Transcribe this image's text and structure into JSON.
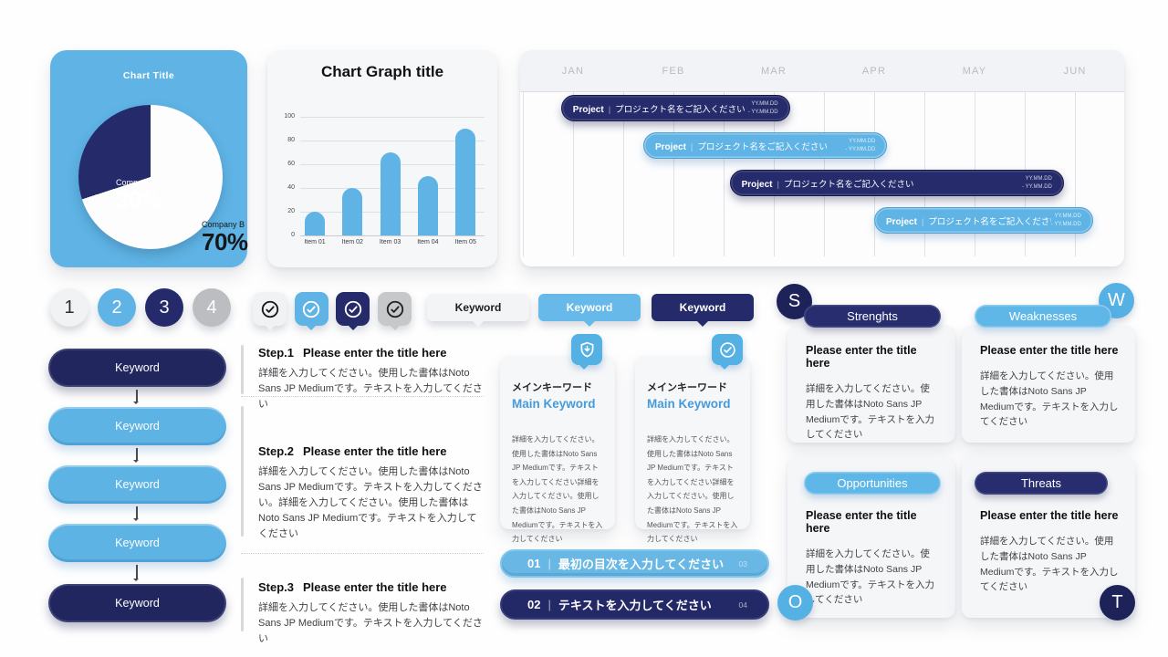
{
  "colors": {
    "light_blue": "#5fb4e5",
    "navy": "#252a6b",
    "gray": "#bcbdc0",
    "card_bg": "#f6f7f9",
    "white": "#ffffff"
  },
  "chart_data": [
    {
      "type": "pie",
      "title": "Chart Title",
      "labels": [
        "Company A",
        "Company B"
      ],
      "values": [
        30,
        70
      ],
      "colors": [
        "#252a6b",
        "#ffffff"
      ],
      "data_labels": [
        "30%",
        "70%"
      ]
    },
    {
      "type": "bar",
      "title": "Chart Graph title",
      "categories": [
        "Item 01",
        "Item 02",
        "Item 03",
        "Item 04",
        "Item 05"
      ],
      "values": [
        20,
        40,
        70,
        50,
        90
      ],
      "ylim": [
        0,
        100
      ],
      "yticks": [
        0,
        20,
        40,
        60,
        80,
        100
      ],
      "bar_color": "#5fb4e5",
      "grid": true,
      "xlabel": "",
      "ylabel": ""
    },
    {
      "type": "gantt",
      "months": [
        "JAN",
        "FEB",
        "MAR",
        "APR",
        "MAY",
        "JUN"
      ],
      "bars": [
        {
          "label": "Project",
          "name": "プロジェクト名をご記入ください",
          "date_line1": "YY.MM.DD",
          "date_line2": "- YY.MM.DD",
          "style": "navy",
          "start_month": 0.38,
          "end_month": 2.66,
          "row": 0
        },
        {
          "label": "Project",
          "name": "プロジェクト名をご記入ください",
          "date_line1": "YY.MM.DD",
          "date_line2": "- YY.MM.DD",
          "style": "blue",
          "start_month": 1.2,
          "end_month": 3.63,
          "row": 1
        },
        {
          "label": "Project",
          "name": "プロジェクト名をご記入ください",
          "date_line1": "YY.MM.DD",
          "date_line2": "- YY.MM.DD",
          "style": "navy",
          "start_month": 2.06,
          "end_month": 5.39,
          "row": 2
        },
        {
          "label": "Project",
          "name": "プロジェクト名をご記入ください",
          "date_line1": "YY.MM.DD",
          "date_line2": "- YY.MM.DD",
          "style": "blue",
          "start_month": 3.5,
          "end_month": 5.68,
          "row": 3
        }
      ]
    }
  ],
  "pie": {
    "title": "Chart Title",
    "slices": [
      {
        "label": "Company A",
        "pct": "30%"
      },
      {
        "label": "Company B",
        "pct": "70%"
      }
    ]
  },
  "bar_chart": {
    "title": "Chart Graph title"
  },
  "num_circles": [
    {
      "label": "1",
      "style": "light"
    },
    {
      "label": "2",
      "style": "blue"
    },
    {
      "label": "3",
      "style": "navy"
    },
    {
      "label": "4",
      "style": "gray"
    }
  ],
  "check_bubbles": [
    {
      "icon": "check-circle-icon",
      "style": "light"
    },
    {
      "icon": "check-circle-icon",
      "style": "blue"
    },
    {
      "icon": "check-circle-icon",
      "style": "navy"
    },
    {
      "icon": "check-circle-icon",
      "style": "gray"
    }
  ],
  "keyword_tags": [
    {
      "label": "Keyword",
      "style": "light"
    },
    {
      "label": "Keyword",
      "style": "blue"
    },
    {
      "label": "Keyword",
      "style": "navy"
    }
  ],
  "flow_pills": [
    {
      "label": "Keyword",
      "style": "navy"
    },
    {
      "label": "Keyword",
      "style": "blue"
    },
    {
      "label": "Keyword",
      "style": "blue"
    },
    {
      "label": "Keyword",
      "style": "blue"
    },
    {
      "label": "Keyword",
      "style": "navy"
    }
  ],
  "steps": [
    {
      "no": "Step.1",
      "title": "Please enter the title here",
      "body": "詳細を入力してください。使用した書体はNoto Sans JP Mediumです。テキストを入力してください"
    },
    {
      "no": "Step.2",
      "title": "Please enter the title here",
      "body": "詳細を入力してください。使用した書体はNoto Sans JP Mediumです。テキストを入力してください。詳細を入力してください。使用した書体はNoto Sans JP Mediumです。テキストを入力してください"
    },
    {
      "no": "Step.3",
      "title": "Please enter the title here",
      "body": "詳細を入力してください。使用した書体はNoto Sans JP Mediumです。テキストを入力してください"
    }
  ],
  "main_keyword_cards": [
    {
      "icon": "shield-download-icon",
      "jp_title": "メインキーワード",
      "en_title": "Main Keyword",
      "body": "詳細を入力してください。使用した書体はNoto Sans JP Mediumです。テキストを入力してください詳細を入力してください。使用した書体はNoto Sans JP Mediumです。テキストを入力してください"
    },
    {
      "icon": "check-circle-icon",
      "jp_title": "メインキーワード",
      "en_title": "Main Keyword",
      "body": "詳細を入力してください。使用した書体はNoto Sans JP Mediumです。テキストを入力してください詳細を入力してください。使用した書体はNoto Sans JP Mediumです。テキストを入力してください"
    }
  ],
  "toc_bars": [
    {
      "num": "01",
      "text": "最初の目次を入力してください",
      "page": "03",
      "style": "blue"
    },
    {
      "num": "02",
      "text": "テキストを入力してください",
      "page": "04",
      "style": "navy"
    }
  ],
  "swot": {
    "title_placeholder": "Please enter the title here",
    "body_placeholder": "詳細を入力してください。使用した書体はNoto Sans JP Mediumです。テキストを入力してください",
    "cards": [
      {
        "letter": "S",
        "header": "Strenghts",
        "style": "navy"
      },
      {
        "letter": "W",
        "header": "Weaknesses",
        "style": "blue"
      },
      {
        "letter": "O",
        "header": "Opportunities",
        "style": "blue"
      },
      {
        "letter": "T",
        "header": "Threats",
        "style": "navy"
      }
    ]
  }
}
